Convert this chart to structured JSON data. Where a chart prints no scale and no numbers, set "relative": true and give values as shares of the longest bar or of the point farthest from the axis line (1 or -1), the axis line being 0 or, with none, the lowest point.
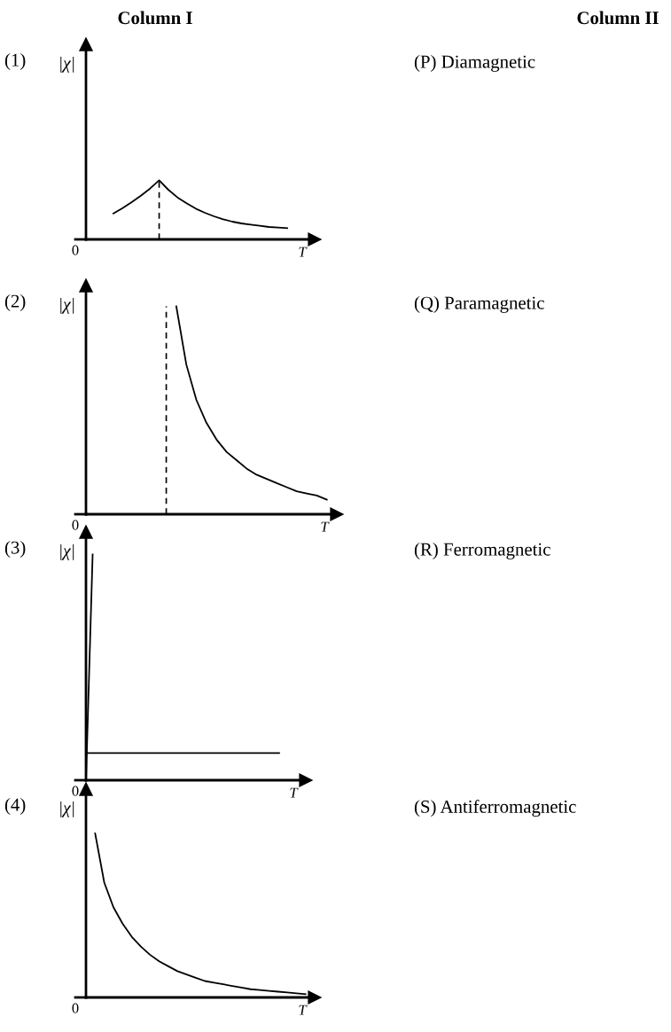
{
  "chart_data": [
    {
      "type": "line",
      "title": "(1)",
      "ylabel": "|χ|",
      "xlabel": "T",
      "relative": true,
      "annotations": [
        "Column I",
        "Column II",
        "0",
        "(P) Diamagnetic"
      ],
      "categories": [
        null,
        null,
        null,
        null,
        null,
        null,
        null,
        null,
        null,
        null,
        null,
        null,
        null,
        null,
        null,
        null,
        null,
        null,
        null,
        null,
        null,
        null,
        null,
        null,
        null,
        null
      ],
      "series": [
        {
          "color": "#000000",
          "values": [
            null,
            null,
            null,
            0.44,
            0.53,
            0.63,
            0.74,
            0.86,
            1.0,
            0.84,
            0.71,
            0.61,
            0.52,
            0.45,
            0.39,
            0.34,
            0.3,
            0.27,
            0.25,
            0.23,
            0.21,
            0.2,
            0.19,
            null,
            null,
            null
          ]
        }
      ]
    },
    {
      "type": "line",
      "title": "(2)",
      "ylabel": "|χ|",
      "xlabel": "T",
      "relative": true,
      "annotations": [
        "0",
        "(Q) Paramagnetic"
      ],
      "categories": [
        null,
        null,
        null,
        null,
        null,
        null,
        null,
        null,
        null,
        null,
        null,
        null,
        null,
        null,
        null,
        null,
        null,
        null,
        null,
        null,
        null,
        null,
        null,
        null,
        null,
        null
      ],
      "series": [
        {
          "color": "#000000",
          "values": [
            null,
            null,
            null,
            null,
            null,
            null,
            null,
            null,
            null,
            1.0,
            0.72,
            0.55,
            0.44,
            0.36,
            0.3,
            0.26,
            0.22,
            0.19,
            0.17,
            0.15,
            0.13,
            0.11,
            0.1,
            0.09,
            0.07,
            null
          ]
        }
      ]
    },
    {
      "type": "line",
      "title": "(3)",
      "ylabel": "|χ|",
      "xlabel": "T",
      "relative": true,
      "annotations": [
        "0",
        "(R) Ferromagnetic"
      ],
      "categories": [
        null,
        null,
        null,
        null,
        null,
        null,
        null,
        null,
        null,
        null,
        null,
        null,
        null,
        null,
        null,
        null,
        null,
        null,
        null,
        null,
        null,
        null,
        null,
        null,
        null,
        null,
        null,
        null,
        null,
        null,
        null,
        null,
        null,
        null
      ],
      "series": [
        {
          "color": "#000000",
          "values": [
            0,
            1.0,
            null,
            null,
            null,
            null,
            null,
            null,
            null,
            null,
            null,
            null,
            null,
            null,
            null,
            null,
            null,
            null,
            null,
            null,
            null,
            null,
            null,
            null,
            null,
            null,
            null,
            null,
            null,
            null,
            null,
            null,
            null,
            null
          ]
        },
        {
          "color": "#000000",
          "values": [
            0.12,
            0.12,
            0.12,
            0.12,
            0.12,
            0.12,
            0.12,
            0.12,
            0.12,
            0.12,
            0.12,
            0.12,
            0.12,
            0.12,
            0.12,
            0.12,
            0.12,
            0.12,
            0.12,
            0.12,
            0.12,
            0.12,
            0.12,
            0.12,
            0.12,
            0.12,
            0.12,
            0.12,
            0.12,
            0.12,
            null,
            null,
            null,
            null
          ]
        }
      ]
    },
    {
      "type": "line",
      "title": "(4)",
      "ylabel": "|χ|",
      "xlabel": "T",
      "relative": true,
      "annotations": [
        "0",
        "(S) Antiferromagnetic"
      ],
      "categories": [
        null,
        null,
        null,
        null,
        null,
        null,
        null,
        null,
        null,
        null,
        null,
        null,
        null,
        null,
        null,
        null,
        null,
        null,
        null,
        null,
        null,
        null,
        null,
        null,
        null,
        null
      ],
      "series": [
        {
          "color": "#000000",
          "values": [
            null,
            1.0,
            0.7,
            0.55,
            0.45,
            0.37,
            0.31,
            0.26,
            0.22,
            0.19,
            0.16,
            0.14,
            0.12,
            0.1,
            0.09,
            0.08,
            0.07,
            0.06,
            0.05,
            0.045,
            0.04,
            0.035,
            0.03,
            0.025,
            0.02,
            null
          ]
        }
      ]
    }
  ]
}
